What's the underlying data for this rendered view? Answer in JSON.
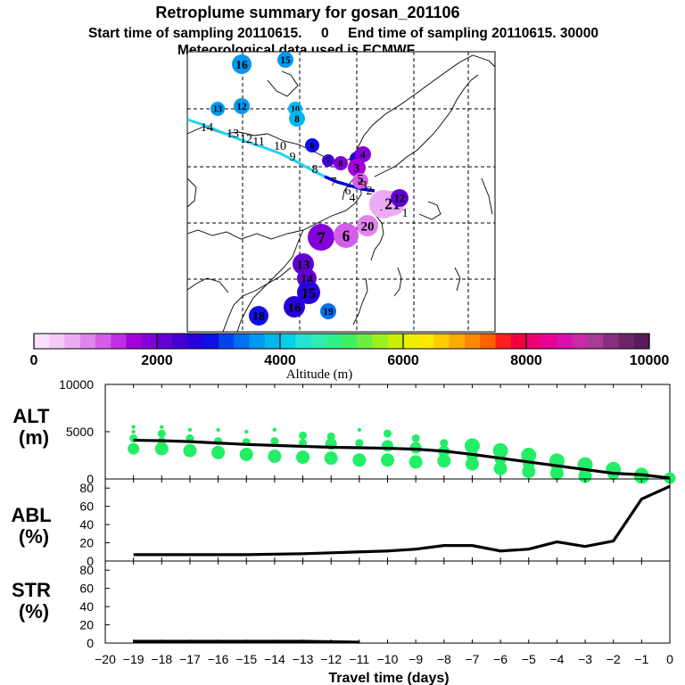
{
  "title": "Retroplume summary for gosan_201106",
  "subtitle1": "Start time of sampling 20110615.     0     End time of sampling 20110615. 30000",
  "subtitle2": "Meteorological data used is ECMWF",
  "colors": {
    "trajectory": "#0000d0",
    "trajectory_old": "#22d4ee",
    "scatter_green": "#22ee66"
  },
  "colorbar": {
    "title": "Altitude (m)",
    "min": 0,
    "max": 10000,
    "tick_labels": [
      "0",
      "2000",
      "4000",
      "6000",
      "8000",
      "10000"
    ],
    "tick_values": [
      0,
      2000,
      4000,
      6000,
      8000,
      10000
    ],
    "colors": [
      "#fde0fd",
      "#f6c8f8",
      "#eeaaf4",
      "#e384ee",
      "#d45ee9",
      "#bf2fe4",
      "#a300dd",
      "#8300d8",
      "#6200d4",
      "#4400d0",
      "#2800dc",
      "#1010e8",
      "#0044ee",
      "#0070f0",
      "#0098f0",
      "#00b8ee",
      "#00d0ea",
      "#22e4d4",
      "#30ecb0",
      "#30f088",
      "#40f060",
      "#6cf040",
      "#9cf020",
      "#c8f000",
      "#ecf000",
      "#ffe800",
      "#ffcc00",
      "#ffac00",
      "#ff8800",
      "#ff6000",
      "#ff2020",
      "#f40040",
      "#ee0070",
      "#e80098",
      "#dc10b0",
      "#c82aa8",
      "#a83a98",
      "#8a2e80",
      "#702468",
      "#5a1c58"
    ]
  },
  "map_labels": [
    {
      "text": "16",
      "alt": 3600
    },
    {
      "text": "15",
      "alt": 3700
    },
    {
      "text": "13",
      "alt": 3700
    },
    {
      "text": "12",
      "alt": 3700
    },
    {
      "text": "10",
      "alt": 3800
    },
    {
      "text": "8",
      "alt": 3800
    },
    {
      "text": "6",
      "alt": 2800
    },
    {
      "text": "5",
      "alt": 2600
    },
    {
      "text": "4",
      "alt": 1800
    },
    {
      "text": "3",
      "alt": 1600
    },
    {
      "text": "2",
      "alt": 1200
    },
    {
      "text": "1",
      "alt": 600
    },
    {
      "text": "7",
      "alt": 2300
    },
    {
      "text": "8",
      "alt": 1900
    },
    {
      "text": "7",
      "alt": 1900
    },
    {
      "text": "6",
      "alt": 1000
    },
    {
      "text": "20",
      "alt": 800
    },
    {
      "text": "21",
      "alt": 700
    },
    {
      "text": "12",
      "alt": 2000
    },
    {
      "text": "13",
      "alt": 2100
    },
    {
      "text": "14",
      "alt": 2200
    },
    {
      "text": "15",
      "alt": 2500
    },
    {
      "text": "16",
      "alt": 2700
    },
    {
      "text": "18",
      "alt": 2900
    },
    {
      "text": "19",
      "alt": 3300
    }
  ],
  "trajectory_labels": [
    "14",
    "13",
    "12",
    "11",
    "10",
    "9",
    "8",
    "7",
    "6",
    "5",
    "4",
    "3",
    "2",
    "1"
  ],
  "chart_data": [
    {
      "type": "line",
      "panel": "ALT",
      "ylabel": "ALT\n(m)",
      "ylim": [
        0,
        10000
      ],
      "yticks": [
        "0",
        "5000",
        "10000"
      ],
      "x": [
        -19,
        -18,
        -17,
        -16,
        -15,
        -14,
        -13,
        -12,
        -11,
        -10,
        -9,
        -8,
        -7,
        -6,
        -5,
        -4,
        -3,
        -2,
        -1,
        0
      ],
      "series": [
        {
          "name": "mean altitude",
          "values": [
            4100,
            4050,
            3950,
            3800,
            3650,
            3550,
            3450,
            3350,
            3300,
            3250,
            3150,
            2950,
            2600,
            2200,
            1800,
            1400,
            1000,
            600,
            450,
            100
          ]
        },
        {
          "name": "cluster altitudes",
          "scatter": true,
          "points": [
            [
              -19,
              5500
            ],
            [
              -19,
              5000
            ],
            [
              -19,
              4300
            ],
            [
              -19,
              3200
            ],
            [
              -18,
              5500
            ],
            [
              -18,
              4800
            ],
            [
              -18,
              4000
            ],
            [
              -18,
              3200
            ],
            [
              -17,
              5200
            ],
            [
              -17,
              4300
            ],
            [
              -17,
              3000
            ],
            [
              -16,
              5200
            ],
            [
              -16,
              4000
            ],
            [
              -16,
              2800
            ],
            [
              -15,
              5000
            ],
            [
              -15,
              3900
            ],
            [
              -15,
              2600
            ],
            [
              -14,
              5200
            ],
            [
              -14,
              4000
            ],
            [
              -14,
              2400
            ],
            [
              -13,
              4600
            ],
            [
              -13,
              3800
            ],
            [
              -13,
              2300
            ],
            [
              -12,
              4500
            ],
            [
              -12,
              3700
            ],
            [
              -12,
              2200
            ],
            [
              -11,
              5200
            ],
            [
              -11,
              3800
            ],
            [
              -11,
              2000
            ],
            [
              -10,
              4800
            ],
            [
              -10,
              3500
            ],
            [
              -10,
              2000
            ],
            [
              -9,
              4300
            ],
            [
              -9,
              3300
            ],
            [
              -9,
              1800
            ],
            [
              -8,
              3800
            ],
            [
              -8,
              2900
            ],
            [
              -8,
              1900
            ],
            [
              -7,
              3500
            ],
            [
              -7,
              2500
            ],
            [
              -7,
              1600
            ],
            [
              -6,
              3000
            ],
            [
              -6,
              2100
            ],
            [
              -6,
              1100
            ],
            [
              -5,
              2500
            ],
            [
              -5,
              1600
            ],
            [
              -5,
              800
            ],
            [
              -4,
              1900
            ],
            [
              -4,
              1300
            ],
            [
              -4,
              600
            ],
            [
              -3,
              1500
            ],
            [
              -3,
              1000
            ],
            [
              -3,
              300
            ],
            [
              -2,
              1000
            ],
            [
              -2,
              500
            ],
            [
              -1,
              500
            ],
            [
              -1,
              300
            ],
            [
              0,
              100
            ]
          ]
        }
      ]
    },
    {
      "type": "line",
      "panel": "ABL",
      "ylabel": "ABL\n(%)",
      "ylim": [
        0,
        90
      ],
      "yticks": [
        "0",
        "20",
        "40",
        "60",
        "80"
      ],
      "x": [
        -19,
        -18,
        -17,
        -16,
        -15,
        -14,
        -13,
        -12,
        -11,
        -10,
        -9,
        -8,
        -7,
        -6,
        -5,
        -4,
        -3,
        -2,
        -1,
        0
      ],
      "series": [
        {
          "name": "ABL",
          "values": [
            7,
            7,
            7,
            7,
            7,
            7.5,
            8,
            9,
            10,
            11,
            13,
            17,
            17,
            11,
            13,
            21,
            16,
            22,
            68,
            82
          ]
        }
      ]
    },
    {
      "type": "line",
      "panel": "STR",
      "ylabel": "STR\n(%)",
      "ylim": [
        0,
        90
      ],
      "yticks": [
        "0",
        "20",
        "40",
        "60",
        "80"
      ],
      "xlabel": "Travel time (days)",
      "xticks": [
        "−20",
        "−19",
        "−18",
        "−17",
        "−16",
        "−15",
        "−14",
        "−13",
        "−12",
        "−11",
        "−10",
        "−9",
        "−8",
        "−7",
        "−6",
        "−5",
        "−4",
        "−3",
        "−2",
        "−1",
        "0"
      ],
      "x": [
        -19,
        -18,
        -17,
        -16,
        -15,
        -14,
        -13,
        -12,
        -11
      ],
      "series": [
        {
          "name": "STR",
          "values": [
            2,
            2,
            2,
            2,
            2,
            2,
            2,
            1.5,
            1
          ]
        }
      ]
    }
  ]
}
